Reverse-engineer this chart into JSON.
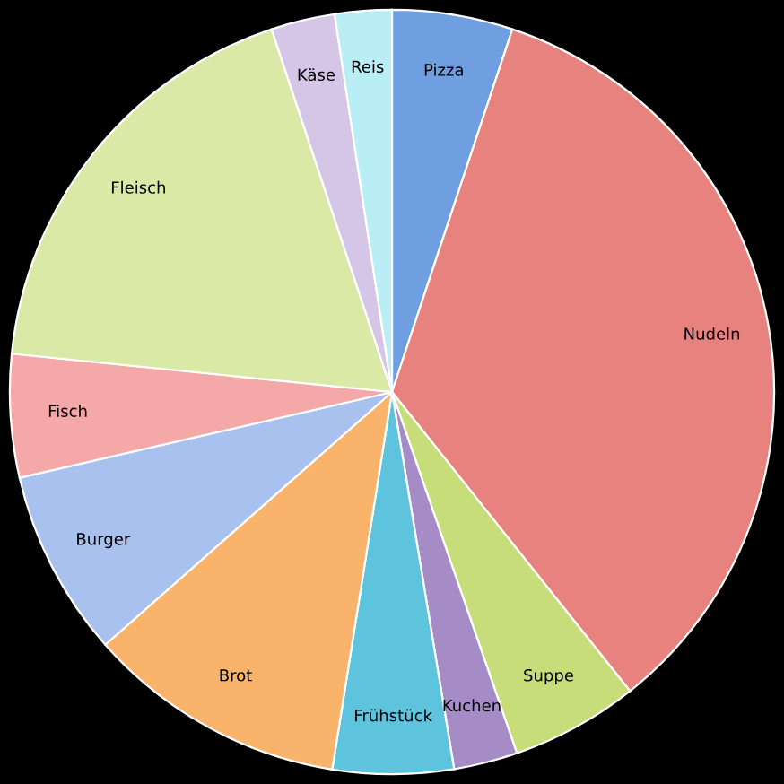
{
  "chart_data": {
    "type": "pie",
    "categories": [
      "Pizza",
      "Nudeln",
      "Suppe",
      "Kuchen",
      "Frühstück",
      "Brot",
      "Burger",
      "Fisch",
      "Fleisch",
      "Käse",
      "Reis"
    ],
    "values": [
      5.1,
      34.2,
      5.4,
      2.7,
      5.1,
      11.0,
      7.9,
      5.2,
      18.3,
      2.7,
      2.4
    ],
    "colors": [
      "#6f9fe0",
      "#e8827e",
      "#c6dd7a",
      "#a58cc6",
      "#5ec4dd",
      "#f9b36a",
      "#a9c1ee",
      "#f4a9a8",
      "#dbe9a6",
      "#d5c6e8",
      "#b9eef6"
    ],
    "legend": false
  }
}
